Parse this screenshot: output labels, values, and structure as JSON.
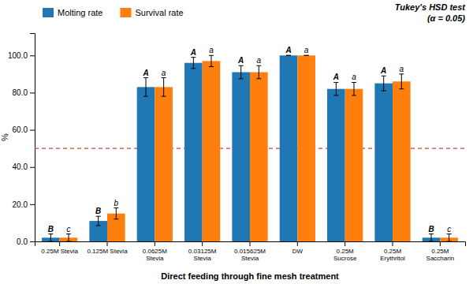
{
  "chart_data": {
    "type": "bar",
    "categories": [
      "0.25M Stevia",
      "0.125M Stevia",
      "0.0625M\nStevia",
      "0.03125M\nStevia",
      "0.015625M\nStevia",
      "DW",
      "0.25M\nSucrose",
      "0.25M\nErythritol",
      "0.25M\nSaccharin"
    ],
    "series": [
      {
        "name": "Molting rate",
        "values": [
          2.0,
          11.0,
          83.0,
          96.0,
          91.0,
          100.0,
          82.0,
          85.0,
          2.0
        ],
        "errors": [
          2.0,
          2.5,
          5.0,
          3.0,
          3.5,
          0.0,
          3.5,
          4.0,
          2.0
        ],
        "letters": [
          "B",
          "B",
          "A",
          "A",
          "A",
          "A",
          "A",
          "A",
          "B"
        ]
      },
      {
        "name": "Survival rate",
        "values": [
          2.0,
          15.0,
          83.0,
          97.0,
          91.0,
          100.0,
          82.0,
          86.0,
          2.0
        ],
        "errors": [
          2.0,
          3.0,
          5.0,
          3.0,
          3.5,
          0.0,
          3.5,
          4.0,
          2.0
        ],
        "letters": [
          "c",
          "b",
          "a",
          "a",
          "a",
          "a",
          "a",
          "a",
          "c"
        ]
      }
    ],
    "x_label": "Direct feeding through fine mesh treatment",
    "y_label": "%",
    "ylim": [
      0,
      112
    ],
    "yticks": [
      {
        "value": 0.0,
        "label": "0.0"
      },
      {
        "value": 20.0,
        "label": "20.0"
      },
      {
        "value": 40.0,
        "label": "40.0"
      },
      {
        "value": 60.0,
        "label": "60.0"
      },
      {
        "value": 80.0,
        "label": "80.0"
      },
      {
        "value": 100.0,
        "label": "100.0"
      }
    ],
    "reference_lines": [
      {
        "y": 50,
        "color": "#d44040",
        "line_style": "dashed"
      }
    ],
    "annotations": [
      "Tukey's HSD test",
      "(α = 0.05)"
    ],
    "legend": "top",
    "grid": false
  }
}
